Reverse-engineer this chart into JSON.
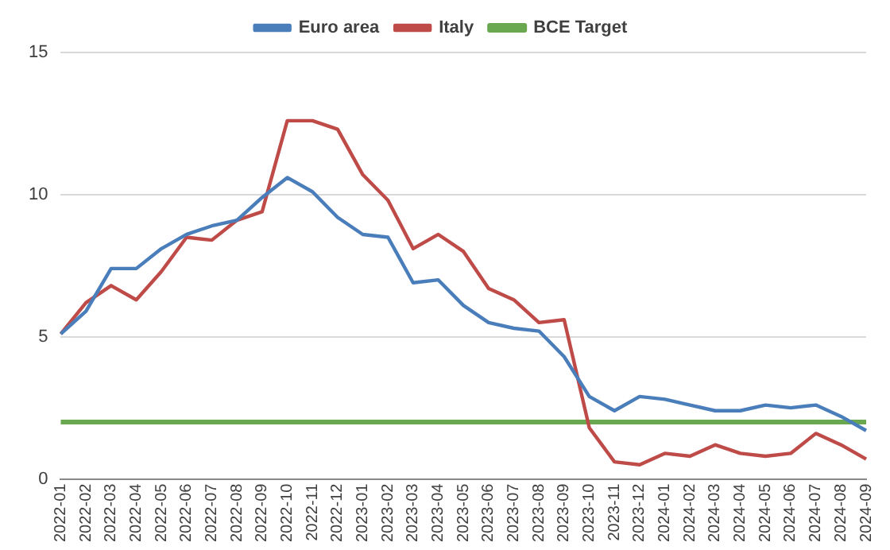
{
  "chart_data": {
    "type": "line",
    "categories": [
      "2022-01",
      "2022-02",
      "2022-03",
      "2022-04",
      "2022-05",
      "2022-06",
      "2022-07",
      "2022-08",
      "2022-09",
      "2022-10",
      "2022-11",
      "2022-12",
      "2023-01",
      "2023-02",
      "2023-03",
      "2023-04",
      "2023-05",
      "2023-06",
      "2023-07",
      "2023-08",
      "2023-09",
      "2023-10",
      "2023-11",
      "2023-12",
      "2024-01",
      "2024-02",
      "2024-03",
      "2024-04",
      "2024-05",
      "2024-06",
      "2024-07",
      "2024-08",
      "2024-09"
    ],
    "series": [
      {
        "name": "Euro area",
        "color": "#4a7ebb",
        "values": [
          5.1,
          5.9,
          7.4,
          7.4,
          8.1,
          8.6,
          8.9,
          9.1,
          9.9,
          10.6,
          10.1,
          9.2,
          8.6,
          8.5,
          6.9,
          7.0,
          6.1,
          5.5,
          5.3,
          5.2,
          4.3,
          2.9,
          2.4,
          2.9,
          2.8,
          2.6,
          2.4,
          2.4,
          2.6,
          2.5,
          2.6,
          2.2,
          1.7
        ]
      },
      {
        "name": "Italy",
        "color": "#be4b48",
        "values": [
          5.1,
          6.2,
          6.8,
          6.3,
          7.3,
          8.5,
          8.4,
          9.1,
          9.4,
          12.6,
          12.6,
          12.3,
          10.7,
          9.8,
          8.1,
          8.6,
          8.0,
          6.7,
          6.3,
          5.5,
          5.6,
          1.8,
          0.6,
          0.5,
          0.9,
          0.8,
          1.2,
          0.9,
          0.8,
          0.9,
          1.6,
          1.2,
          0.7
        ]
      },
      {
        "name": "BCE Target",
        "color": "#6aa84f",
        "values": [
          2,
          2,
          2,
          2,
          2,
          2,
          2,
          2,
          2,
          2,
          2,
          2,
          2,
          2,
          2,
          2,
          2,
          2,
          2,
          2,
          2,
          2,
          2,
          2,
          2,
          2,
          2,
          2,
          2,
          2,
          2,
          2,
          2
        ]
      }
    ],
    "ylim": [
      0,
      15
    ],
    "yticks": [
      0,
      5,
      10,
      15
    ],
    "grid": "y",
    "legend": "top",
    "marker": "none",
    "line_style": "solid"
  }
}
